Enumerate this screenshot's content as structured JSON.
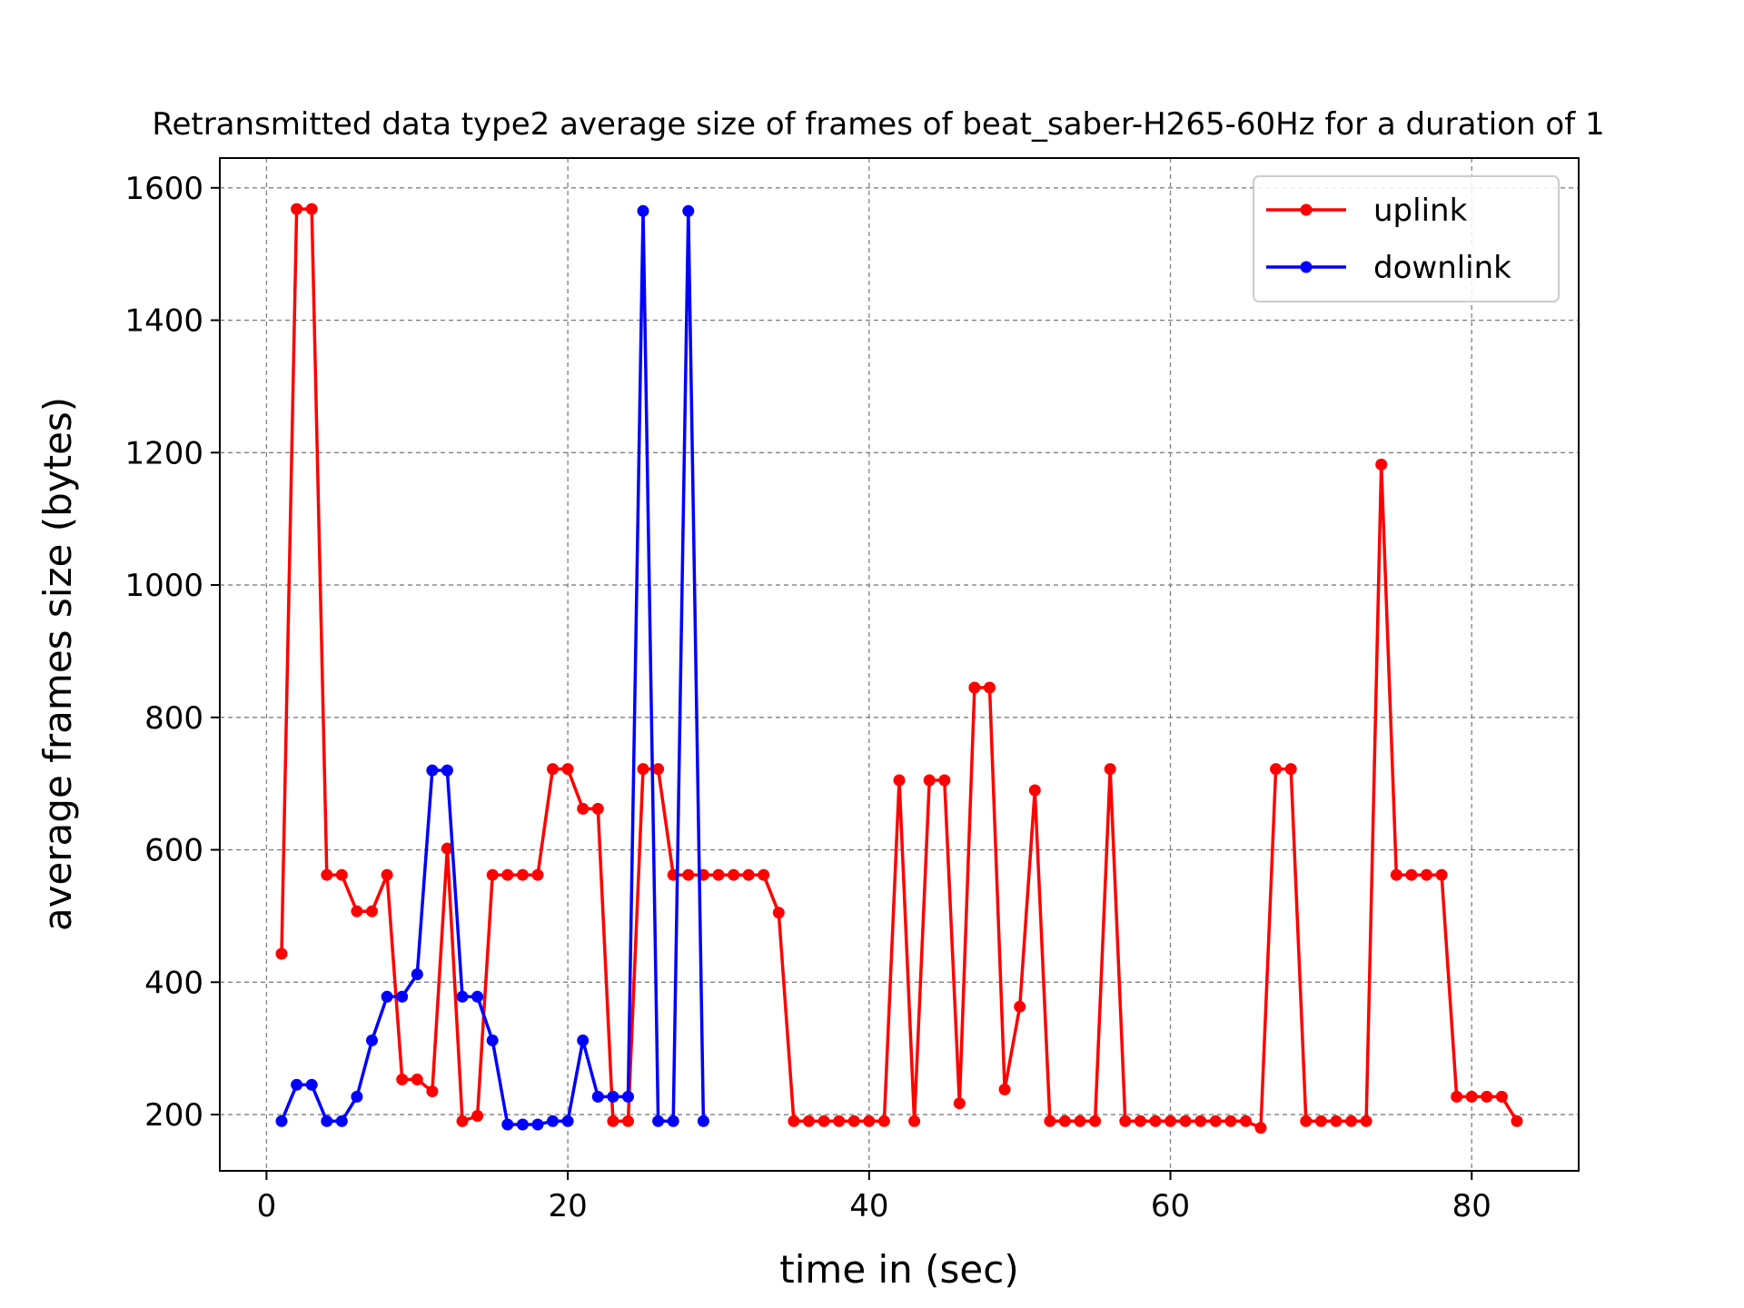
{
  "chart_data": {
    "type": "line",
    "title": "Retransmitted data type2 average size of frames of beat_saber-H265-60Hz for a duration of 1",
    "xlabel": "time in (sec)",
    "ylabel": "average frames size (bytes)",
    "xlim": [
      -3.1,
      87.1
    ],
    "ylim": [
      115,
      1645
    ],
    "xticks": [
      0,
      20,
      40,
      60,
      80
    ],
    "xtick_labels": [
      "0",
      "20",
      "40",
      "60",
      "80"
    ],
    "yticks": [
      200,
      400,
      600,
      800,
      1000,
      1200,
      1400,
      1600
    ],
    "ytick_labels": [
      "200",
      "400",
      "600",
      "800",
      "1000",
      "1200",
      "1400",
      "1600"
    ],
    "grid": true,
    "legend_position": "top-right",
    "series": [
      {
        "name": "uplink",
        "color": "#ff0000",
        "x": [
          1,
          2,
          3,
          4,
          5,
          6,
          7,
          8,
          9,
          10,
          11,
          12,
          13,
          14,
          15,
          16,
          17,
          18,
          19,
          20,
          21,
          22,
          23,
          24,
          25,
          26,
          27,
          28,
          29,
          30,
          31,
          32,
          33,
          34,
          35,
          36,
          37,
          38,
          39,
          40,
          41,
          42,
          43,
          44,
          45,
          46,
          47,
          48,
          49,
          50,
          51,
          52,
          53,
          54,
          55,
          56,
          57,
          58,
          59,
          60,
          61,
          62,
          63,
          64,
          65,
          66,
          67,
          68,
          69,
          70,
          71,
          72,
          73,
          74,
          75,
          76,
          77,
          78,
          79,
          80,
          81,
          82,
          83
        ],
        "y": [
          443,
          1568,
          1568,
          562,
          562,
          507,
          507,
          562,
          253,
          253,
          235,
          602,
          190,
          198,
          562,
          562,
          562,
          562,
          722,
          722,
          662,
          662,
          190,
          190,
          722,
          722,
          562,
          562,
          562,
          562,
          562,
          562,
          562,
          505,
          190,
          190,
          190,
          190,
          190,
          190,
          190,
          705,
          190,
          705,
          705,
          217,
          845,
          845,
          238,
          363,
          690,
          190,
          190,
          190,
          190,
          722,
          190,
          190,
          190,
          190,
          190,
          190,
          190,
          190,
          190,
          180,
          722,
          722,
          190,
          190,
          190,
          190,
          190,
          1182,
          562,
          562,
          562,
          562,
          227,
          227,
          227,
          227,
          190
        ]
      },
      {
        "name": "downlink",
        "color": "#0000ff",
        "x": [
          1,
          2,
          3,
          4,
          5,
          6,
          7,
          8,
          9,
          10,
          11,
          12,
          13,
          14,
          15,
          16,
          17,
          18,
          19,
          20,
          21,
          22,
          23,
          24,
          25,
          26,
          27,
          28,
          29
        ],
        "y": [
          190,
          245,
          245,
          190,
          190,
          227,
          312,
          378,
          378,
          412,
          720,
          720,
          378,
          378,
          312,
          185,
          185,
          185,
          190,
          190,
          312,
          227,
          227,
          227,
          1565,
          190,
          190,
          1565,
          190
        ]
      }
    ]
  }
}
